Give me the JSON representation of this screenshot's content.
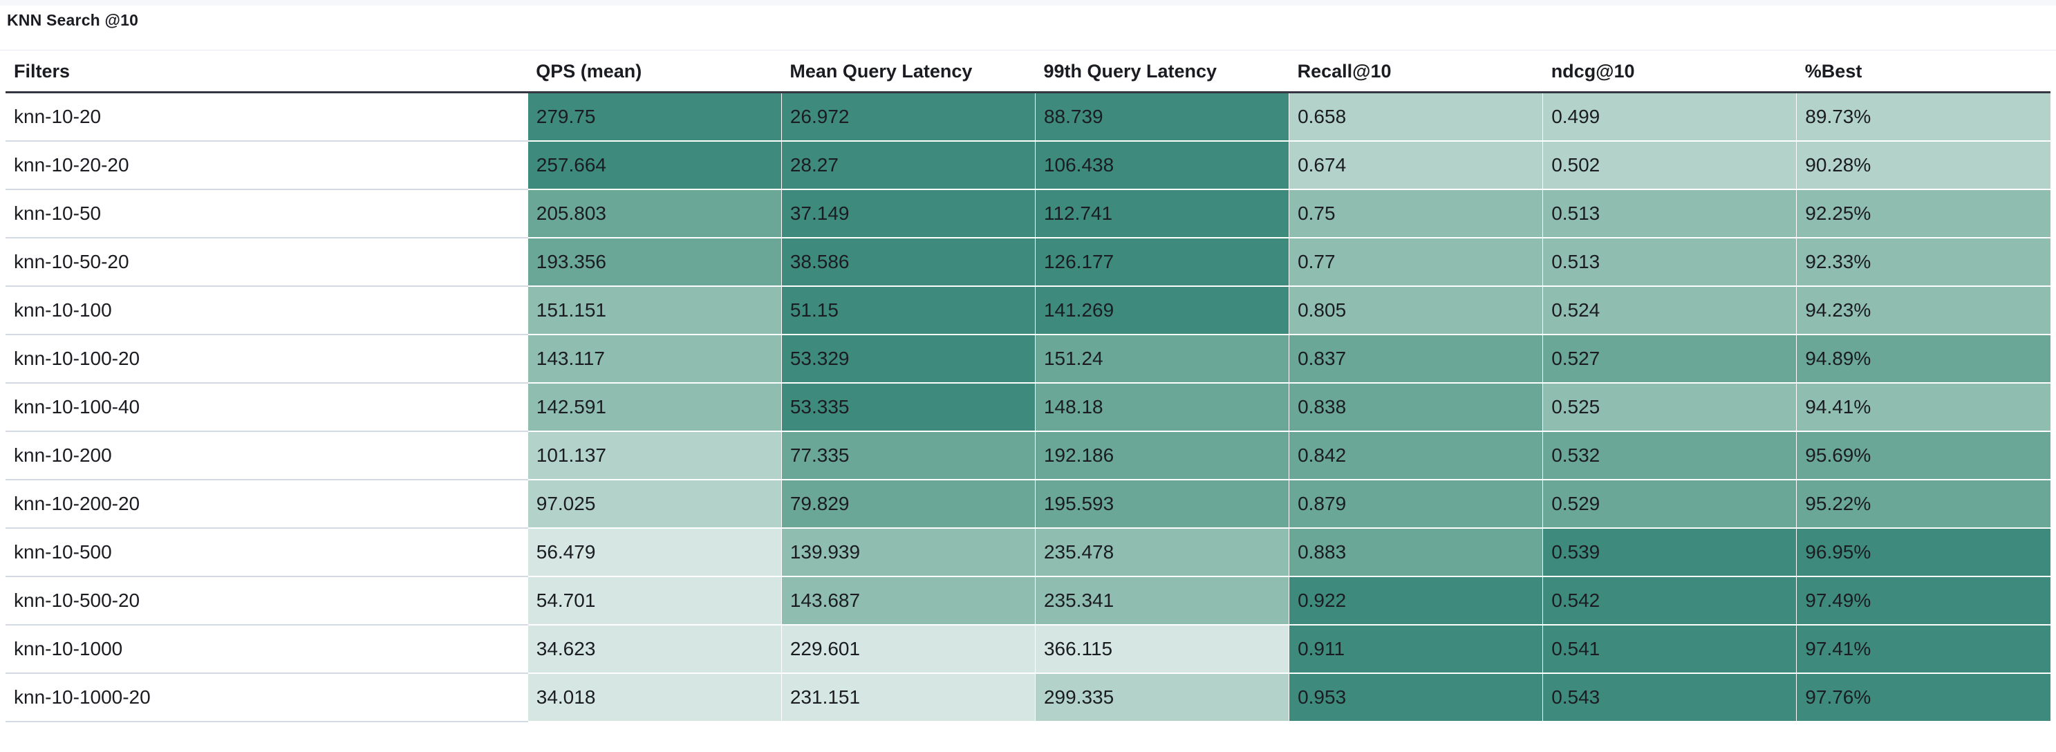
{
  "panel": {
    "title": "KNN Search @10"
  },
  "table": {
    "columns": [
      "Filters",
      "QPS (mean)",
      "Mean Query Latency",
      "99th Query Latency",
      "Recall@10",
      "ndcg@10",
      "%Best"
    ],
    "rows": [
      {
        "filter": "knn-10-20",
        "values": [
          "279.75",
          "26.972",
          "88.739",
          "0.658",
          "0.499",
          "89.73%"
        ],
        "shades": [
          4,
          4,
          4,
          1,
          1,
          1
        ]
      },
      {
        "filter": "knn-10-20-20",
        "values": [
          "257.664",
          "28.27",
          "106.438",
          "0.674",
          "0.502",
          "90.28%"
        ],
        "shades": [
          4,
          4,
          4,
          1,
          1,
          1
        ]
      },
      {
        "filter": "knn-10-50",
        "values": [
          "205.803",
          "37.149",
          "112.741",
          "0.75",
          "0.513",
          "92.25%"
        ],
        "shades": [
          3,
          4,
          4,
          2,
          2,
          2
        ]
      },
      {
        "filter": "knn-10-50-20",
        "values": [
          "193.356",
          "38.586",
          "126.177",
          "0.77",
          "0.513",
          "92.33%"
        ],
        "shades": [
          3,
          4,
          4,
          2,
          2,
          2
        ]
      },
      {
        "filter": "knn-10-100",
        "values": [
          "151.151",
          "51.15",
          "141.269",
          "0.805",
          "0.524",
          "94.23%"
        ],
        "shades": [
          2,
          4,
          4,
          2,
          2,
          2
        ]
      },
      {
        "filter": "knn-10-100-20",
        "values": [
          "143.117",
          "53.329",
          "151.24",
          "0.837",
          "0.527",
          "94.89%"
        ],
        "shades": [
          2,
          4,
          3,
          3,
          3,
          3
        ]
      },
      {
        "filter": "knn-10-100-40",
        "values": [
          "142.591",
          "53.335",
          "148.18",
          "0.838",
          "0.525",
          "94.41%"
        ],
        "shades": [
          2,
          4,
          3,
          3,
          2,
          2
        ]
      },
      {
        "filter": "knn-10-200",
        "values": [
          "101.137",
          "77.335",
          "192.186",
          "0.842",
          "0.532",
          "95.69%"
        ],
        "shades": [
          1,
          3,
          3,
          3,
          3,
          3
        ]
      },
      {
        "filter": "knn-10-200-20",
        "values": [
          "97.025",
          "79.829",
          "195.593",
          "0.879",
          "0.529",
          "95.22%"
        ],
        "shades": [
          1,
          3,
          3,
          3,
          3,
          3
        ]
      },
      {
        "filter": "knn-10-500",
        "values": [
          "56.479",
          "139.939",
          "235.478",
          "0.883",
          "0.539",
          "96.95%"
        ],
        "shades": [
          0,
          2,
          2,
          3,
          4,
          4
        ]
      },
      {
        "filter": "knn-10-500-20",
        "values": [
          "54.701",
          "143.687",
          "235.341",
          "0.922",
          "0.542",
          "97.49%"
        ],
        "shades": [
          0,
          2,
          2,
          4,
          4,
          4
        ]
      },
      {
        "filter": "knn-10-1000",
        "values": [
          "34.623",
          "229.601",
          "366.115",
          "0.911",
          "0.541",
          "97.41%"
        ],
        "shades": [
          0,
          0,
          0,
          4,
          4,
          4
        ]
      },
      {
        "filter": "knn-10-1000-20",
        "values": [
          "34.018",
          "231.151",
          "299.335",
          "0.953",
          "0.543",
          "97.76%"
        ],
        "shades": [
          0,
          0,
          1,
          4,
          4,
          4
        ]
      }
    ]
  },
  "colors": {
    "heat_scale": [
      "#d6e7e3",
      "#b3d3ca",
      "#8fbdb0",
      "#6aa796",
      "#3e8b7e"
    ],
    "header_rule": "#343741",
    "row_rule": "#d3dae6"
  }
}
